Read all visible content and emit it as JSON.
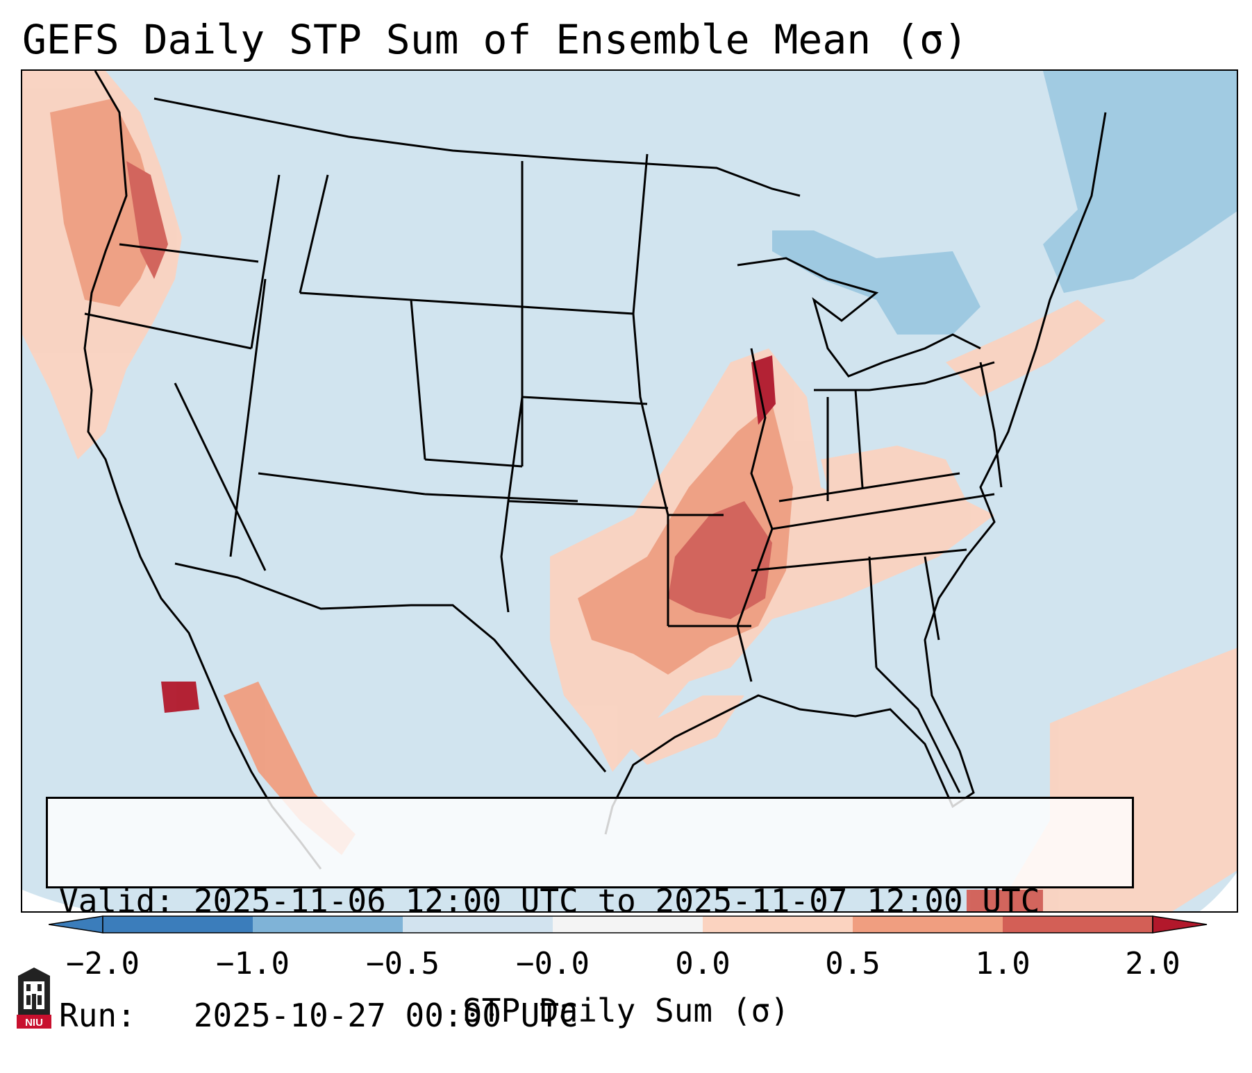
{
  "title": "GEFS Daily STP Sum of Ensemble Mean (σ)",
  "info": {
    "valid_line": "Valid: 2025-11-06 12:00 UTC to 2025-11-07 12:00 UTC",
    "run_line": "Run:   2025-10-27 00:00 UTC"
  },
  "colorbar": {
    "label": "STP Daily Sum (σ)",
    "ticks": [
      "−2.0",
      "−1.0",
      "−0.5",
      "−0.0",
      "0.0",
      "0.5",
      "1.0",
      "2.0"
    ],
    "colors": [
      "#3b7dbb",
      "#7fb3d7",
      "#d2e3ef",
      "#f4f4f4",
      "#fbd3c0",
      "#f09e80",
      "#d35f56",
      "#b2182b"
    ],
    "extend": "both"
  },
  "map": {
    "background_color": "#d1e4ef",
    "anomaly_levels": {
      "light_blue": "#8ec1dd",
      "light_red": "#fbd3c0",
      "mid_red": "#f09e80",
      "red": "#d35f56",
      "dark_red": "#b2182b"
    }
  },
  "logo": {
    "text": "NIU",
    "color": "#c8102e"
  }
}
